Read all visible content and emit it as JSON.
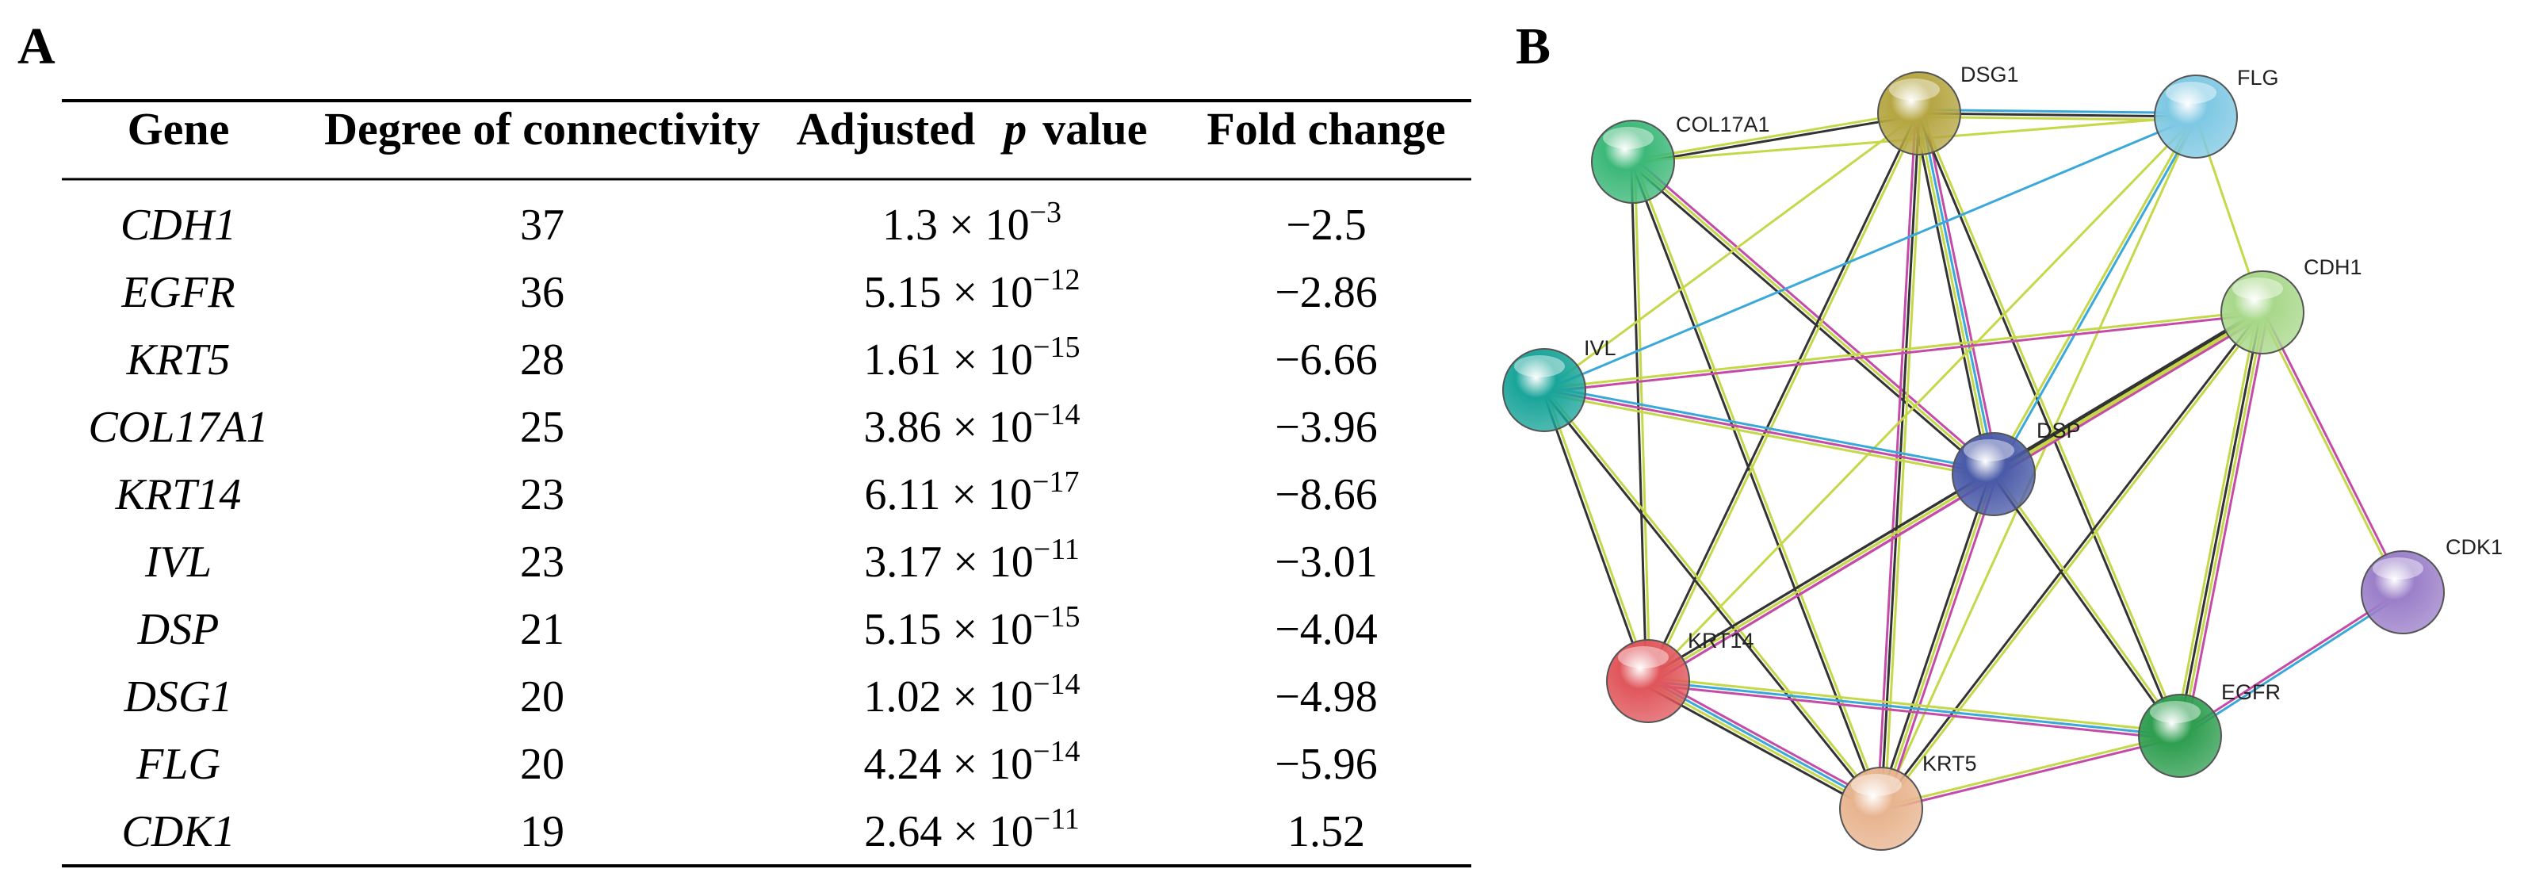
{
  "panels": {
    "a": "A",
    "b": "B"
  },
  "table": {
    "header": [
      "Gene",
      "Degree of connectivity",
      {
        "parts": [
          "Adjusted",
          "p",
          "value"
        ]
      },
      "Fold change"
    ],
    "rows": [
      {
        "gene": "CDH1",
        "degree": 37,
        "p_value": {
          "base": "1.3 × 10",
          "exp": "−3"
        },
        "fold_change": "−2.5"
      },
      {
        "gene": "EGFR",
        "degree": 36,
        "p_value": {
          "base": "5.15 × 10",
          "exp": "−12"
        },
        "fold_change": "−2.86"
      },
      {
        "gene": "KRT5",
        "degree": 28,
        "p_value": {
          "base": "1.61 × 10",
          "exp": "−15"
        },
        "fold_change": "−6.66"
      },
      {
        "gene": "COL17A1",
        "degree": 25,
        "p_value": {
          "base": "3.86 × 10",
          "exp": "−14"
        },
        "fold_change": "−3.96"
      },
      {
        "gene": "KRT14",
        "degree": 23,
        "p_value": {
          "base": "6.11 × 10",
          "exp": "−17"
        },
        "fold_change": "−8.66"
      },
      {
        "gene": "IVL",
        "degree": 23,
        "p_value": {
          "base": "3.17 × 10",
          "exp": "−11"
        },
        "fold_change": "−3.01"
      },
      {
        "gene": "DSP",
        "degree": 21,
        "p_value": {
          "base": "5.15 × 10",
          "exp": "−15"
        },
        "fold_change": "−4.04"
      },
      {
        "gene": "DSG1",
        "degree": 20,
        "p_value": {
          "base": "1.02 × 10",
          "exp": "−14"
        },
        "fold_change": "−4.98"
      },
      {
        "gene": "FLG",
        "degree": 20,
        "p_value": {
          "base": "4.24 × 10",
          "exp": "−14"
        },
        "fold_change": "−5.96"
      },
      {
        "gene": "CDK1",
        "degree": 19,
        "p_value": {
          "base": "2.64 × 10",
          "exp": "−11"
        },
        "fold_change": "1.52"
      }
    ]
  },
  "network": {
    "nodes": [
      {
        "label": "COL17A1",
        "color": "#3cb878"
      },
      {
        "label": "DSG1",
        "color": "#b5a642"
      },
      {
        "label": "FLG",
        "color": "#7ec8e3"
      },
      {
        "label": "CDH1",
        "color": "#a8d88a"
      },
      {
        "label": "IVL",
        "color": "#1aa59a"
      },
      {
        "label": "DSP",
        "color": "#4a5aa8"
      },
      {
        "label": "CDK1",
        "color": "#9b7fc9"
      },
      {
        "label": "KRT14",
        "color": "#e0565b"
      },
      {
        "label": "EGFR",
        "color": "#2e9e4f"
      },
      {
        "label": "KRT5",
        "color": "#e8b48f"
      }
    ]
  }
}
